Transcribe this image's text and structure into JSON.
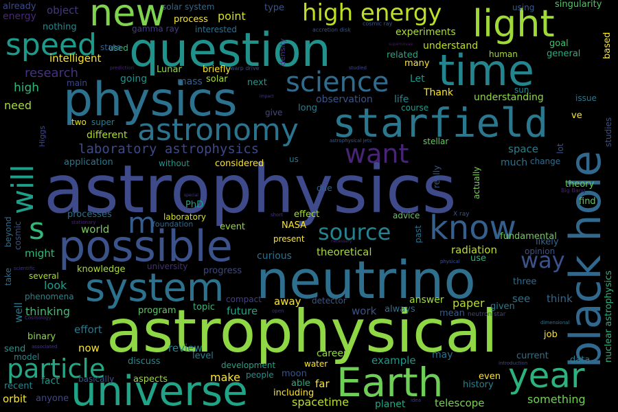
{
  "words": [
    {
      "text": "astrophysics",
      "color": "#3e4a89"
    },
    {
      "text": "astrophysical",
      "color": "#8fd744"
    },
    {
      "text": "neutrino",
      "color": "#2e6f8e"
    },
    {
      "text": "question",
      "color": "#21918c"
    },
    {
      "text": "physics",
      "color": "#2c718e"
    },
    {
      "text": "universe",
      "color": "#20a386"
    },
    {
      "text": "possible",
      "color": "#3b528b"
    },
    {
      "text": "starfield",
      "color": "#2a788e"
    },
    {
      "text": "black hole",
      "color": "#31688e"
    },
    {
      "text": "Earth",
      "color": "#6ece58"
    },
    {
      "text": "time",
      "color": "#25858e"
    },
    {
      "text": "system",
      "color": "#2c728e"
    },
    {
      "text": "new",
      "color": "#7fd34e"
    },
    {
      "text": "light",
      "color": "#a0da39"
    },
    {
      "text": "year",
      "color": "#2db27d"
    },
    {
      "text": "astronomy",
      "color": "#2c738e"
    },
    {
      "text": "know",
      "color": "#35608d"
    },
    {
      "text": "speed",
      "color": "#1f9a8a"
    },
    {
      "text": "high energy",
      "color": "#bddf26"
    },
    {
      "text": "science",
      "color": "#2f6c8e"
    },
    {
      "text": "will",
      "color": "#1f9e89"
    },
    {
      "text": "particle",
      "color": "#22a884"
    },
    {
      "text": "want",
      "color": "#482475"
    },
    {
      "text": "source",
      "color": "#26828e"
    },
    {
      "text": "way",
      "color": "#3b528b"
    },
    {
      "text": "s",
      "color": "#34b679"
    },
    {
      "text": "m",
      "color": "#365c8d"
    },
    {
      "text": "laboratory astrophysics",
      "color": "#3e4989"
    },
    {
      "text": "research",
      "color": "#46337f"
    },
    {
      "text": "intelligent",
      "color": "#fde725"
    },
    {
      "text": "high",
      "color": "#32b67a"
    },
    {
      "text": "need",
      "color": "#a8db34"
    },
    {
      "text": "energy",
      "color": "#482878"
    },
    {
      "text": "already",
      "color": "#3e4989"
    },
    {
      "text": "object",
      "color": "#44397f"
    },
    {
      "text": "nothing",
      "color": "#23898e"
    },
    {
      "text": "used",
      "color": "#37b878"
    },
    {
      "text": "gamma ray",
      "color": "#433e85"
    },
    {
      "text": "solar system",
      "color": "#31688e"
    },
    {
      "text": "process",
      "color": "#fde725"
    },
    {
      "text": "point",
      "color": "#d8e219"
    },
    {
      "text": "interested",
      "color": "#2d708e"
    },
    {
      "text": "type",
      "color": "#39568c"
    },
    {
      "text": "density",
      "color": "#453882"
    },
    {
      "text": "accretion disk",
      "color": "#3a538b"
    },
    {
      "text": "cosmic ray",
      "color": "#39568c"
    },
    {
      "text": "experiments",
      "color": "#addc30"
    },
    {
      "text": "using",
      "color": "#38598c"
    },
    {
      "text": "singularity",
      "color": "#52c569"
    },
    {
      "text": "goal",
      "color": "#44bf70"
    },
    {
      "text": "general",
      "color": "#29af7f"
    },
    {
      "text": "based",
      "color": "#fde725"
    },
    {
      "text": "understand",
      "color": "#bddf26"
    },
    {
      "text": "human",
      "color": "#a8db34"
    },
    {
      "text": "related",
      "color": "#22a884"
    },
    {
      "text": "many",
      "color": "#fde725"
    },
    {
      "text": "state",
      "color": "#355f8d"
    },
    {
      "text": "main",
      "color": "#3e4989"
    },
    {
      "text": "going",
      "color": "#21918c"
    },
    {
      "text": "Lunar",
      "color": "#90d743"
    },
    {
      "text": "briefly",
      "color": "#fde725"
    },
    {
      "text": "solar",
      "color": "#a5db36"
    },
    {
      "text": "next",
      "color": "#1f9a8a"
    },
    {
      "text": "mass",
      "color": "#34608d"
    },
    {
      "text": "Let",
      "color": "#1f968b"
    },
    {
      "text": "Thank",
      "color": "#fde725"
    },
    {
      "text": "sun",
      "color": "#24868e"
    },
    {
      "text": "understanding",
      "color": "#8fd744"
    },
    {
      "text": "issue",
      "color": "#2a778e"
    },
    {
      "text": "ve",
      "color": "#fde725"
    },
    {
      "text": "studies",
      "color": "#3b528b"
    },
    {
      "text": "observation",
      "color": "#39568c"
    },
    {
      "text": "life",
      "color": "#25858e"
    },
    {
      "text": "course",
      "color": "#1e9c89"
    },
    {
      "text": "long",
      "color": "#277f8e"
    },
    {
      "text": "give",
      "color": "#3e4989"
    },
    {
      "text": "stellar",
      "color": "#65cb5e"
    },
    {
      "text": "two",
      "color": "#e5e419"
    },
    {
      "text": "super",
      "color": "#277f8e"
    },
    {
      "text": "different",
      "color": "#addc30"
    },
    {
      "text": "Higgs",
      "color": "#3f4788"
    },
    {
      "text": "astrophysical jets",
      "color": "#38588c"
    },
    {
      "text": "application",
      "color": "#2a788e"
    },
    {
      "text": "without",
      "color": "#1f968b"
    },
    {
      "text": "considered",
      "color": "#fde725"
    },
    {
      "text": "us",
      "color": "#2a788e"
    },
    {
      "text": "space",
      "color": "#277f8e"
    },
    {
      "text": "much",
      "color": "#2c738e"
    },
    {
      "text": "change",
      "color": "#2f6c8e"
    },
    {
      "text": "lot",
      "color": "#3b528b"
    },
    {
      "text": "theory",
      "color": "#6ece58"
    },
    {
      "text": "find",
      "color": "#5ec962"
    },
    {
      "text": "Big Bang",
      "color": "#482071"
    },
    {
      "text": "really",
      "color": "#38588c"
    },
    {
      "text": "actually",
      "color": "#7ad151"
    },
    {
      "text": "PhD",
      "color": "#1fa088"
    },
    {
      "text": "laboratory",
      "color": "#d2e21b"
    },
    {
      "text": "foundation",
      "color": "#2f6b8e"
    },
    {
      "text": "event",
      "color": "#9dd93b"
    },
    {
      "text": "effect",
      "color": "#a2da37"
    },
    {
      "text": "processes",
      "color": "#2c718e"
    },
    {
      "text": "world",
      "color": "#73d056"
    },
    {
      "text": "NASA",
      "color": "#fde725"
    },
    {
      "text": "present",
      "color": "#fde725"
    },
    {
      "text": "advice",
      "color": "#65cb5e"
    },
    {
      "text": "X ray",
      "color": "#38588c"
    },
    {
      "text": "fundamental",
      "color": "#73d056"
    },
    {
      "text": "theoretical",
      "color": "#a5db36"
    },
    {
      "text": "radiation",
      "color": "#bddf26"
    },
    {
      "text": "likely",
      "color": "#32658e"
    },
    {
      "text": "opinion",
      "color": "#3b528b"
    },
    {
      "text": "due",
      "color": "#34608d"
    },
    {
      "text": "short",
      "color": "#46337f"
    },
    {
      "text": "past",
      "color": "#2b748e"
    },
    {
      "text": "use",
      "color": "#2db27d"
    },
    {
      "text": "physical",
      "color": "#3b528b"
    },
    {
      "text": "special",
      "color": "#443a83"
    },
    {
      "text": "stationary",
      "color": "#482475"
    },
    {
      "text": "cosmic",
      "color": "#39568c"
    },
    {
      "text": "take",
      "color": "#2e6d8e"
    },
    {
      "text": "beyond",
      "color": "#2e6f8e"
    },
    {
      "text": "might",
      "color": "#37b878"
    },
    {
      "text": "scientific",
      "color": "#46327e"
    },
    {
      "text": "knowledge",
      "color": "#aadc32"
    },
    {
      "text": "university",
      "color": "#472d7b"
    },
    {
      "text": "curious",
      "color": "#2d708e"
    },
    {
      "text": "progress",
      "color": "#3f4788"
    },
    {
      "text": "necessary",
      "color": "#482475"
    },
    {
      "text": "supernovae",
      "color": "#48186a"
    },
    {
      "text": "impact",
      "color": "#443983"
    },
    {
      "text": "studied",
      "color": "#3f4788"
    },
    {
      "text": "prediction",
      "color": "#482173"
    },
    {
      "text": "warp drive",
      "color": "#3e4989"
    },
    {
      "text": "several",
      "color": "#addc30"
    },
    {
      "text": "look",
      "color": "#1f9e89"
    },
    {
      "text": "phenomena",
      "color": "#25858e"
    },
    {
      "text": "three",
      "color": "#2f6c8e"
    },
    {
      "text": "see",
      "color": "#2c728e"
    },
    {
      "text": "think",
      "color": "#31688e"
    },
    {
      "text": "compact",
      "color": "#433e85"
    },
    {
      "text": "away",
      "color": "#fde725"
    },
    {
      "text": "detector",
      "color": "#39568c"
    },
    {
      "text": "answer",
      "color": "#a2da37"
    },
    {
      "text": "paper",
      "color": "#bade28"
    },
    {
      "text": "given",
      "color": "#287c8e"
    },
    {
      "text": "well",
      "color": "#2a788e"
    },
    {
      "text": "thinking",
      "color": "#3fbc73"
    },
    {
      "text": "program",
      "color": "#5ec962"
    },
    {
      "text": "topic",
      "color": "#37b878"
    },
    {
      "text": "future",
      "color": "#20a386"
    },
    {
      "text": "work",
      "color": "#3b528b"
    },
    {
      "text": "always",
      "color": "#2d708e"
    },
    {
      "text": "mean",
      "color": "#375a8c"
    },
    {
      "text": "neutron star",
      "color": "#414487"
    },
    {
      "text": "open",
      "color": "#46327e"
    },
    {
      "text": "Cosmology",
      "color": "#472c7a"
    },
    {
      "text": "binary",
      "color": "#8fd744"
    },
    {
      "text": "effort",
      "color": "#2a788e"
    },
    {
      "text": "send",
      "color": "#1f968b"
    },
    {
      "text": "associated",
      "color": "#453882"
    },
    {
      "text": "model",
      "color": "#23898e"
    },
    {
      "text": "now",
      "color": "#fde725"
    },
    {
      "text": "job",
      "color": "#fde725"
    },
    {
      "text": "dimensional",
      "color": "#2c738e"
    },
    {
      "text": "review",
      "color": "#25848e"
    },
    {
      "text": "level",
      "color": "#26828e"
    },
    {
      "text": "career",
      "color": "#90d743"
    },
    {
      "text": "example",
      "color": "#1f958b"
    },
    {
      "text": "may",
      "color": "#2d708e"
    },
    {
      "text": "current",
      "color": "#2b748e"
    },
    {
      "text": "data",
      "color": "#277f8e"
    },
    {
      "text": "nuclear astrophysics",
      "color": "#2db27d"
    },
    {
      "text": "fact",
      "color": "#1f968b"
    },
    {
      "text": "basically",
      "color": "#3b528b"
    },
    {
      "text": "aspects",
      "color": "#9dd93b"
    },
    {
      "text": "discuss",
      "color": "#23898e"
    },
    {
      "text": "make",
      "color": "#fde725"
    },
    {
      "text": "development",
      "color": "#20a386"
    },
    {
      "text": "people",
      "color": "#21918c"
    },
    {
      "text": "moon",
      "color": "#39568c"
    },
    {
      "text": "water",
      "color": "#fde725"
    },
    {
      "text": "far",
      "color": "#fde725"
    },
    {
      "text": "able",
      "color": "#29af7f"
    },
    {
      "text": "introduction",
      "color": "#3e4989"
    },
    {
      "text": "history",
      "color": "#25858e"
    },
    {
      "text": "even",
      "color": "#fde725"
    },
    {
      "text": "recent",
      "color": "#23898e"
    },
    {
      "text": "orbit",
      "color": "#fde725"
    },
    {
      "text": "anyone",
      "color": "#3e4989"
    },
    {
      "text": "including",
      "color": "#fde725"
    },
    {
      "text": "spacetime",
      "color": "#bddf26"
    },
    {
      "text": "planet",
      "color": "#22a884"
    },
    {
      "text": "idea",
      "color": "#433e85"
    },
    {
      "text": "telescope",
      "color": "#7ad151"
    },
    {
      "text": "something",
      "color": "#73d056"
    }
  ]
}
